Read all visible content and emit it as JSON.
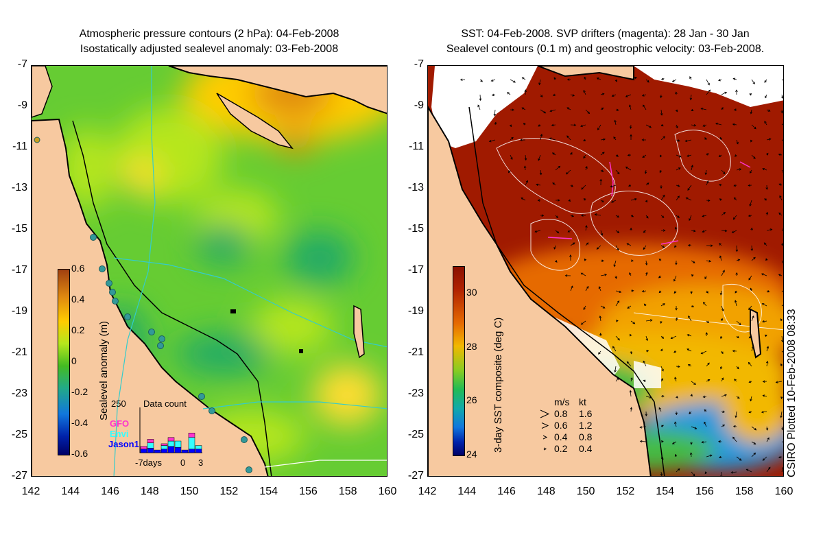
{
  "left_panel": {
    "title_line1": "Atmospheric pressure contours (2 hPa): 04-Feb-2008",
    "title_line2": "Isostatically adjusted sealevel anomaly: 03-Feb-2008",
    "colorbar": {
      "label": "Sealevel anomaly (m)",
      "ticks": [
        "0.6",
        "0.4",
        "0.2",
        "0",
        "-0.2",
        "-0.4",
        "-0.6"
      ],
      "range": [
        -0.6,
        0.6
      ]
    },
    "data_count_inset": {
      "title": "Data count",
      "ymax_label": "250",
      "x_labels": [
        "-7days",
        "0",
        "3"
      ],
      "series": [
        {
          "name": "GFO",
          "color": "#ff33cc"
        },
        {
          "name": "Envi",
          "color": "#33ffff"
        },
        {
          "name": "Jason1",
          "color": "#0000ff"
        }
      ],
      "bars": [
        {
          "jason": 20,
          "envi": 0,
          "gfo": 15
        },
        {
          "jason": 25,
          "envi": 30,
          "gfo": 20
        },
        {
          "jason": 15,
          "envi": 0,
          "gfo": 0
        },
        {
          "jason": 20,
          "envi": 20,
          "gfo": 10
        },
        {
          "jason": 35,
          "envi": 30,
          "gfo": 20
        },
        {
          "jason": 30,
          "envi": 35,
          "gfo": 0
        },
        {
          "jason": 15,
          "envi": 0,
          "gfo": 0
        },
        {
          "jason": 20,
          "envi": 65,
          "gfo": 25
        },
        {
          "jason": 20,
          "envi": 20,
          "gfo": 0
        }
      ]
    }
  },
  "right_panel": {
    "title_line1": "SST: 04-Feb-2008. SVP drifters (magenta): 28 Jan - 30 Jan",
    "title_line2": "Sealevel contours (0.1 m) and geostrophic velocity: 03-Feb-2008.",
    "colorbar": {
      "label": "3-day SST composite (deg C)",
      "ticks": [
        "30",
        "28",
        "26",
        "24"
      ],
      "range": [
        24,
        31
      ]
    },
    "velocity_legend": {
      "header_ms": "m/s",
      "header_kt": "kt",
      "rows": [
        {
          "ms": "0.8",
          "kt": "1.6"
        },
        {
          "ms": "0.6",
          "kt": "1.2"
        },
        {
          "ms": "0.4",
          "kt": "0.8"
        },
        {
          "ms": "0.2",
          "kt": "0.4"
        }
      ]
    },
    "credit": "CSIRO Plotted 10-Feb-2008 08:33"
  },
  "axes": {
    "lon_ticks": [
      "142",
      "144",
      "146",
      "148",
      "150",
      "152",
      "154",
      "156",
      "158",
      "160"
    ],
    "lat_ticks": [
      "-7",
      "-9",
      "-11",
      "-13",
      "-15",
      "-17",
      "-19",
      "-21",
      "-23",
      "-25",
      "-27"
    ],
    "lon_range": [
      142,
      160
    ],
    "lat_range": [
      -27,
      -7
    ]
  },
  "colors": {
    "land": "#f7c9a0",
    "ocean_anomaly_base": "#66cc33",
    "sst_hot": "#a01a00",
    "sst_cloud": "#ffffff",
    "drifter": "#ff33cc",
    "tide_gauge": "#339999"
  }
}
